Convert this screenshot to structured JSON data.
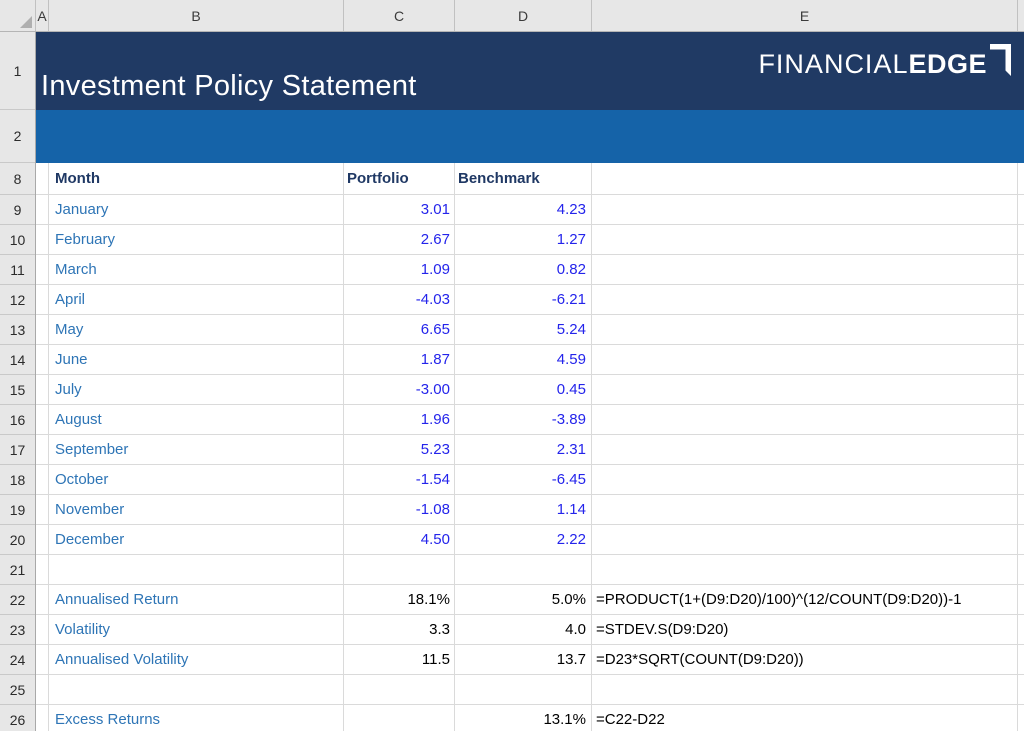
{
  "sheet": {
    "column_letters": [
      "A",
      "B",
      "C",
      "D",
      "E"
    ],
    "row_numbers": [
      "1",
      "2",
      "8",
      "9",
      "10",
      "11",
      "12",
      "13",
      "14",
      "15",
      "16",
      "17",
      "18",
      "19",
      "20",
      "21",
      "22",
      "23",
      "24",
      "25",
      "26"
    ],
    "title": "Investment Policy Statement",
    "logo": {
      "text_thin": "FINANCIAL",
      "text_bold": "EDGE"
    },
    "table": {
      "header": {
        "month": "Month",
        "portfolio": "Portfolio",
        "benchmark": "Benchmark"
      },
      "months": [
        {
          "name": "January",
          "portfolio": "3.01",
          "benchmark": "4.23"
        },
        {
          "name": "February",
          "portfolio": "2.67",
          "benchmark": "1.27"
        },
        {
          "name": "March",
          "portfolio": "1.09",
          "benchmark": "0.82"
        },
        {
          "name": "April",
          "portfolio": "-4.03",
          "benchmark": "-6.21"
        },
        {
          "name": "May",
          "portfolio": "6.65",
          "benchmark": "5.24"
        },
        {
          "name": "June",
          "portfolio": "1.87",
          "benchmark": "4.59"
        },
        {
          "name": "July",
          "portfolio": "-3.00",
          "benchmark": "0.45"
        },
        {
          "name": "August",
          "portfolio": "1.96",
          "benchmark": "-3.89"
        },
        {
          "name": "September",
          "portfolio": "5.23",
          "benchmark": "2.31"
        },
        {
          "name": "October",
          "portfolio": "-1.54",
          "benchmark": "-6.45"
        },
        {
          "name": "November",
          "portfolio": "-1.08",
          "benchmark": "1.14"
        },
        {
          "name": "December",
          "portfolio": "4.50",
          "benchmark": "2.22"
        }
      ],
      "stats": [
        {
          "label": "Annualised Return",
          "portfolio": "18.1%",
          "benchmark": "5.0%",
          "formula": "=PRODUCT(1+(D9:D20)/100)^(12/COUNT(D9:D20))-1"
        },
        {
          "label": "Volatility",
          "portfolio": "3.3",
          "benchmark": "4.0",
          "formula": "=STDEV.S(D9:D20)"
        },
        {
          "label": "Annualised Volatility",
          "portfolio": "11.5",
          "benchmark": "13.7",
          "formula": "=D23*SQRT(COUNT(D9:D20))"
        }
      ],
      "excess": {
        "label": "Excess Returns",
        "benchmark": "13.1%",
        "formula": "=C22-D22"
      }
    },
    "colors": {
      "banner_navy": "#203A64",
      "band_blue": "#1563A8",
      "label_blue": "#2E75B6",
      "input_number_blue": "#2424EB",
      "header_text_navy": "#1F3864",
      "gridline": "#DADADA"
    }
  }
}
